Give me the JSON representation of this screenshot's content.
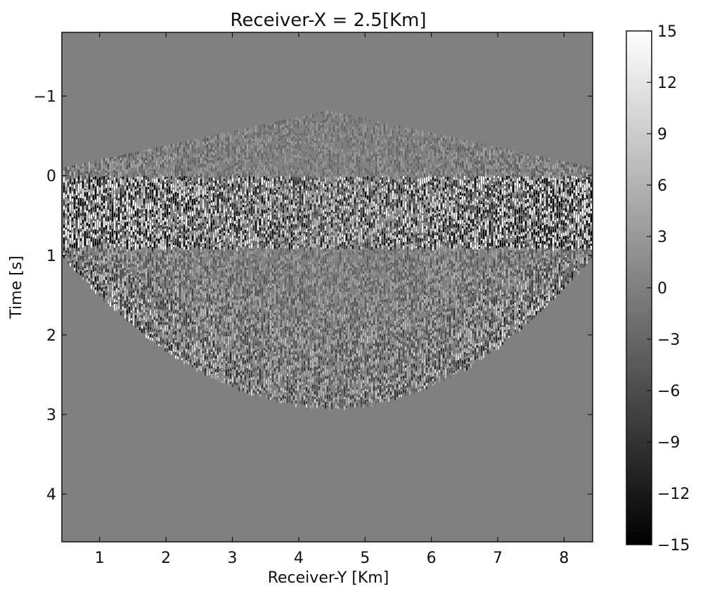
{
  "chart_data": {
    "type": "heatmap",
    "title": "Receiver-X = 2.5[Km]",
    "xlabel": "Receiver-Y [Km]",
    "ylabel": "Time [s]",
    "xlim": [
      0.43,
      8.43
    ],
    "ylim": [
      4.6,
      -1.8
    ],
    "y_inverted": true,
    "xticks": [
      1,
      2,
      3,
      4,
      5,
      6,
      7,
      8
    ],
    "xtick_labels": [
      "1",
      "2",
      "3",
      "4",
      "5",
      "6",
      "7",
      "8"
    ],
    "yticks": [
      -1,
      0,
      1,
      2,
      3,
      4
    ],
    "ytick_labels": [
      "−1",
      "0",
      "1",
      "2",
      "3",
      "4"
    ],
    "colormap": "gray",
    "colorbar": {
      "vmin": -15,
      "vmax": 15,
      "ticks": [
        15,
        12,
        9,
        6,
        3,
        0,
        -3,
        -6,
        -9,
        -12,
        -15
      ],
      "tick_labels": [
        "15",
        "12",
        "9",
        "6",
        "3",
        "0",
        "−3",
        "−6",
        "−9",
        "−12",
        "−15"
      ]
    },
    "background_value": 0,
    "event_envelope": {
      "apex_x_km": 4.5,
      "apex_time_s": 2.9,
      "edge_time_s_at_x_min": 1.0,
      "edge_time_s_at_x_max": 1.0,
      "strong_band_time_s": [
        0.0,
        0.9
      ]
    },
    "grid": false
  }
}
